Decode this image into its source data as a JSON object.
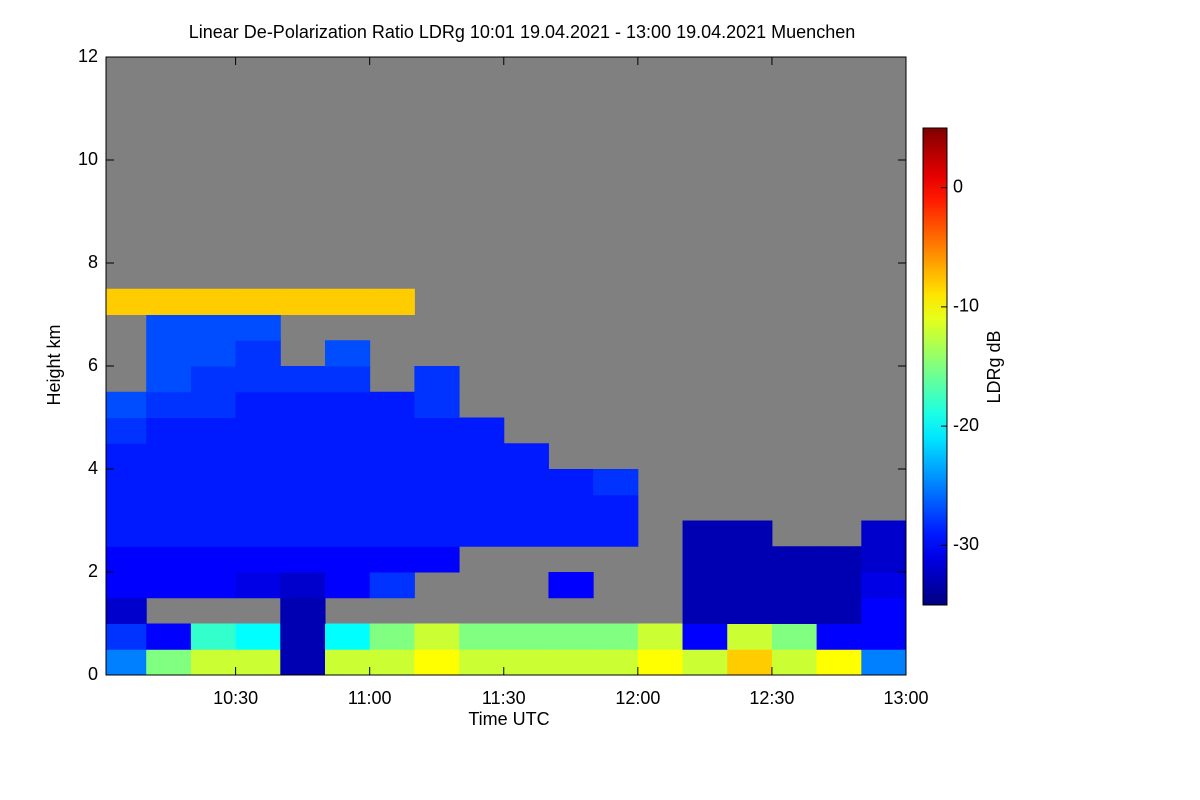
{
  "chart_data": {
    "type": "heatmap",
    "title": "Linear De-Polarization Ratio LDRg   10:01 19.04.2021 - 13:00 19.04.2021 Muenchen",
    "xlabel": "Time UTC",
    "ylabel": "Height km",
    "colorbar_label": "LDRg dB",
    "background": "#808080",
    "colormap": "jet",
    "xlim": [
      "10:01",
      "13:00"
    ],
    "xticks": [
      "10:30",
      "11:00",
      "11:30",
      "12:00",
      "12:30",
      "13:00"
    ],
    "ylim": [
      0,
      12
    ],
    "yticks": [
      0,
      2,
      4,
      6,
      8,
      10,
      12
    ],
    "zlim": [
      -35,
      5
    ],
    "zticks": [
      0,
      -10,
      -20,
      -30
    ],
    "x_bins": [
      "10:01",
      "10:10",
      "10:20",
      "10:30",
      "10:40",
      "10:50",
      "11:00",
      "11:10",
      "11:20",
      "11:30",
      "11:40",
      "11:50",
      "12:00",
      "12:10",
      "12:20",
      "12:30",
      "12:40",
      "12:50",
      "13:00"
    ],
    "y_bins": [
      0,
      0.5,
      1,
      1.5,
      2,
      2.5,
      3,
      3.5,
      4,
      4.5,
      5,
      5.5,
      6,
      6.5,
      7,
      7.5
    ],
    "z": [
      [
        -25,
        -15,
        -12,
        -12,
        -33,
        -12,
        -12,
        -10,
        -12,
        -12,
        -12,
        -12,
        -10,
        -12,
        -8,
        -12,
        -10,
        -25
      ],
      [
        -28,
        -30,
        -18,
        -20,
        -33,
        -20,
        -15,
        -12,
        -15,
        -15,
        -15,
        -15,
        -12,
        -30,
        -12,
        -15,
        -30,
        -30
      ],
      [
        -32,
        null,
        null,
        null,
        -33,
        null,
        null,
        null,
        null,
        null,
        null,
        null,
        null,
        -33,
        -33,
        -33,
        -33,
        -30
      ],
      [
        -30,
        -30,
        -30,
        -31,
        -32,
        -30,
        -28,
        null,
        null,
        null,
        -30,
        null,
        null,
        -33,
        -33,
        -33,
        -33,
        -31
      ],
      [
        -30,
        -30,
        -30,
        -30,
        -30,
        -30,
        -30,
        -30,
        null,
        null,
        null,
        null,
        null,
        -33,
        -33,
        -33,
        -33,
        -32
      ],
      [
        -29,
        -29,
        -29,
        -29,
        -29,
        -29,
        -29,
        -29,
        -29,
        -29,
        -29,
        -29,
        null,
        -33,
        -33,
        null,
        null,
        -32
      ],
      [
        -29,
        -29,
        -29,
        -29,
        -29,
        -29,
        -29,
        -29,
        -29,
        -29,
        -29,
        -29,
        null,
        null,
        null,
        null,
        null,
        null
      ],
      [
        -29,
        -29,
        -29,
        -29,
        -29,
        -29,
        -29,
        -29,
        -29,
        -29,
        -29,
        -28,
        null,
        null,
        null,
        null,
        null,
        null
      ],
      [
        -29,
        -29,
        -29,
        -29,
        -29,
        -29,
        -29,
        -29,
        -29,
        -29,
        null,
        null,
        null,
        null,
        null,
        null,
        null,
        null
      ],
      [
        -28,
        -29,
        -29,
        -29,
        -29,
        -29,
        -29,
        -29,
        -29,
        null,
        null,
        null,
        null,
        null,
        null,
        null,
        null,
        null
      ],
      [
        -27,
        -28,
        -28,
        -29,
        -29,
        -29,
        -29,
        -28,
        null,
        null,
        null,
        null,
        null,
        null,
        null,
        null,
        null,
        null
      ],
      [
        null,
        -27,
        -28,
        -28,
        -28,
        -28,
        null,
        -28,
        null,
        null,
        null,
        null,
        null,
        null,
        null,
        null,
        null,
        null
      ],
      [
        null,
        -27,
        -27,
        -28,
        null,
        -27,
        null,
        null,
        null,
        null,
        null,
        null,
        null,
        null,
        null,
        null,
        null,
        null
      ],
      [
        null,
        -27,
        -27,
        -27,
        null,
        null,
        null,
        null,
        null,
        null,
        null,
        null,
        null,
        null,
        null,
        null,
        null,
        null
      ],
      [
        -8,
        -8,
        -8,
        -8,
        -8,
        -8,
        -8,
        null,
        null,
        null,
        null,
        null,
        null,
        null,
        null,
        null,
        null,
        null
      ]
    ]
  }
}
